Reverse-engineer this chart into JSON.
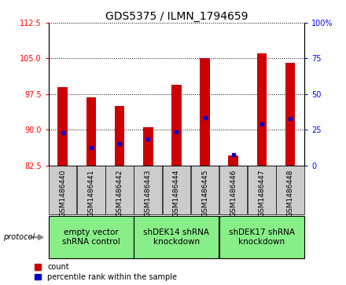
{
  "title": "GDS5375 / ILMN_1794659",
  "samples": [
    "GSM1486440",
    "GSM1486441",
    "GSM1486442",
    "GSM1486443",
    "GSM1486444",
    "GSM1486445",
    "GSM1486446",
    "GSM1486447",
    "GSM1486448"
  ],
  "counts": [
    99.0,
    96.8,
    95.0,
    90.5,
    99.5,
    105.0,
    84.5,
    106.0,
    104.0
  ],
  "percentile_values": [
    89.3,
    86.2,
    87.0,
    88.0,
    89.5,
    92.5,
    84.8,
    91.2,
    92.3
  ],
  "right_yticks_pct": [
    0,
    25,
    50,
    75,
    100
  ],
  "ymin": 82.5,
  "ymax": 112.5,
  "yticks_left": [
    82.5,
    90.0,
    97.5,
    105.0,
    112.5
  ],
  "bar_color": "#cc0000",
  "blue_color": "#0000cc",
  "bar_width": 0.35,
  "groups": [
    {
      "label": "empty vector\nshRNA control",
      "start": 0,
      "end": 3
    },
    {
      "label": "shDEK14 shRNA\nknockdown",
      "start": 3,
      "end": 6
    },
    {
      "label": "shDEK17 shRNA\nknockdown",
      "start": 6,
      "end": 9
    }
  ],
  "group_color": "#88ee88",
  "sample_box_color": "#cccccc",
  "protocol_label": "protocol",
  "legend_count_label": "count",
  "legend_pct_label": "percentile rank within the sample",
  "title_fontsize": 10,
  "tick_fontsize": 7,
  "sample_fontsize": 6.5,
  "group_label_fontsize": 7.5,
  "legend_fontsize": 7
}
